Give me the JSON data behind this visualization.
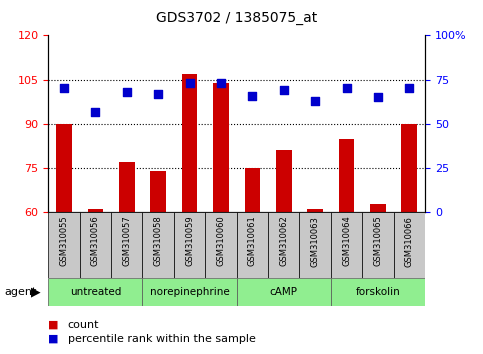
{
  "title": "GDS3702 / 1385075_at",
  "samples": [
    "GSM310055",
    "GSM310056",
    "GSM310057",
    "GSM310058",
    "GSM310059",
    "GSM310060",
    "GSM310061",
    "GSM310062",
    "GSM310063",
    "GSM310064",
    "GSM310065",
    "GSM310066"
  ],
  "count_values": [
    90,
    61,
    77,
    74,
    107,
    104,
    75,
    81,
    61,
    85,
    63,
    90
  ],
  "percentile_values": [
    70,
    57,
    68,
    67,
    73,
    73,
    66,
    69,
    63,
    70,
    65,
    70
  ],
  "ylim_left": [
    60,
    120
  ],
  "ylim_right": [
    0,
    100
  ],
  "yticks_left": [
    60,
    75,
    90,
    105,
    120
  ],
  "yticks_right": [
    0,
    25,
    50,
    75,
    100
  ],
  "yticklabels_right": [
    "0",
    "25",
    "50",
    "75",
    "100%"
  ],
  "grid_values": [
    75,
    90,
    105
  ],
  "agents": [
    {
      "label": "untreated",
      "start": 0,
      "end": 3
    },
    {
      "label": "norepinephrine",
      "start": 3,
      "end": 6
    },
    {
      "label": "cAMP",
      "start": 6,
      "end": 9
    },
    {
      "label": "forskolin",
      "start": 9,
      "end": 12
    }
  ],
  "bar_color": "#cc0000",
  "dot_color": "#0000cc",
  "agent_bg": "#90EE90",
  "sample_bg": "#c8c8c8",
  "bar_width": 0.5,
  "dot_size": 35,
  "figsize": [
    4.83,
    3.54
  ],
  "dpi": 100
}
